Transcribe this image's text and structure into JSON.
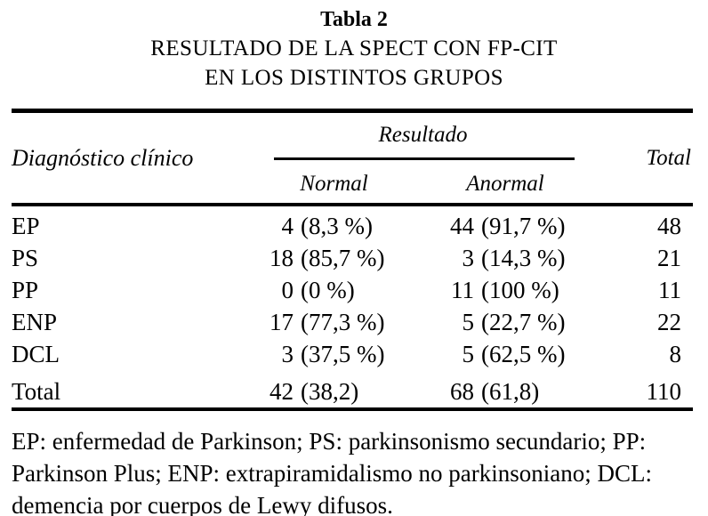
{
  "table": {
    "label": "Tabla 2",
    "title_line1": "RESULTADO DE LA SPECT CON FP-CIT",
    "title_line2": "EN LOS DISTINTOS GRUPOS",
    "header": {
      "diagnosis": "Diagnóstico clínico",
      "result_group": "Resultado",
      "normal": "Normal",
      "abnormal": "Anormal",
      "total": "Total"
    },
    "rows": [
      {
        "label": "EP",
        "normal_n": "4",
        "normal_pct": "(8,3 %)",
        "abnormal_n": "44",
        "abnormal_pct": "(91,7 %)",
        "total": "48"
      },
      {
        "label": "PS",
        "normal_n": "18",
        "normal_pct": "(85,7 %)",
        "abnormal_n": "3",
        "abnormal_pct": "(14,3 %)",
        "total": "21"
      },
      {
        "label": "PP",
        "normal_n": "0",
        "normal_pct": "(0 %)",
        "abnormal_n": "11",
        "abnormal_pct": "(100 %)",
        "total": "11"
      },
      {
        "label": "ENP",
        "normal_n": "17",
        "normal_pct": "(77,3 %)",
        "abnormal_n": "5",
        "abnormal_pct": "(22,7 %)",
        "total": "22"
      },
      {
        "label": "DCL",
        "normal_n": "3",
        "normal_pct": "(37,5 %)",
        "abnormal_n": "5",
        "abnormal_pct": "(62,5 %)",
        "total": "8"
      }
    ],
    "totals": {
      "label": "Total",
      "normal_n": "42",
      "normal_pct": "(38,2)",
      "abnormal_n": "68",
      "abnormal_pct": "(61,8)",
      "total": "110"
    },
    "footnote_lines": [
      "EP: enfermedad de Parkinson; PS: parkinsonismo secundario; PP:",
      "Parkinson Plus; ENP: extrapiramidalismo no parkinsoniano; DCL:",
      "demencia por cuerpos de Lewy difusos."
    ]
  },
  "chart_data": {
    "type": "table",
    "title": "Tabla 2 — RESULTADO DE LA SPECT CON FP-CIT EN LOS DISTINTOS GRUPOS",
    "columns": [
      "Diagnóstico clínico",
      "Resultado Normal",
      "Resultado Anormal",
      "Total"
    ],
    "rows": [
      [
        "EP",
        "4 (8,3 %)",
        "44 (91,7 %)",
        48
      ],
      [
        "PS",
        "18 (85,7 %)",
        "3 (14,3 %)",
        21
      ],
      [
        "PP",
        "0 (0 %)",
        "11 (100 %)",
        11
      ],
      [
        "ENP",
        "17 (77,3 %)",
        "5 (22,7 %)",
        22
      ],
      [
        "DCL",
        "3 (37,5 %)",
        "5 (62,5 %)",
        8
      ],
      [
        "Total",
        "42 (38,2)",
        "68 (61,8)",
        110
      ]
    ],
    "footnote": "EP: enfermedad de Parkinson; PS: parkinsonismo secundario; PP: Parkinson Plus; ENP: extrapiramidalismo no parkinsoniano; DCL: demencia por cuerpos de Lewy difusos."
  }
}
